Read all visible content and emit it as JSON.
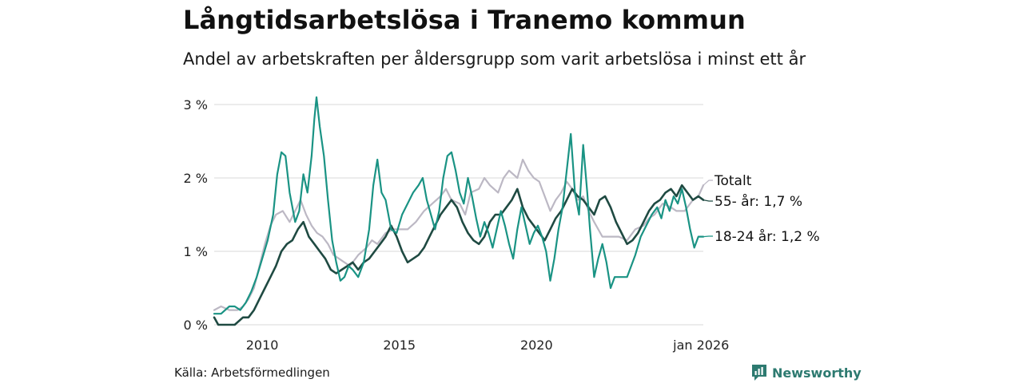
{
  "title": "Långtidsarbetslösa i Tranemo kommun",
  "subtitle": "Andel av arbetskraften per åldersgrupp som varit arbetslösa i minst ett år",
  "source": "Källa: Arbetsförmedlingen",
  "brand": "Newsworthy",
  "colors": {
    "totalt": "#bcb8c4",
    "age55": "#1f4a42",
    "age1824": "#1a9384",
    "grid": "#e0e0e0",
    "brand": "#2d7a70"
  },
  "chart_data": {
    "type": "line",
    "title": "Långtidsarbetslösa i Tranemo kommun",
    "xlabel": "",
    "ylabel": "",
    "ylim": [
      0,
      3
    ],
    "xlim": [
      2008.25,
      2026.08
    ],
    "yticks": [
      {
        "value": 0,
        "label": "0 %"
      },
      {
        "value": 1,
        "label": "1 %"
      },
      {
        "value": 2,
        "label": "2 %"
      },
      {
        "value": 3,
        "label": "3 %"
      }
    ],
    "xticks": [
      {
        "value": 2010,
        "label": "2010"
      },
      {
        "value": 2015,
        "label": "2015"
      },
      {
        "value": 2020,
        "label": "2020"
      },
      {
        "value": 2026.0,
        "label": "jan 2026"
      }
    ],
    "series": [
      {
        "name": "Totalt",
        "key": "totalt",
        "end_label": "Totalt",
        "width": 2.2,
        "points": [
          [
            2008.25,
            0.2
          ],
          [
            2008.5,
            0.25
          ],
          [
            2008.8,
            0.2
          ],
          [
            2009.1,
            0.2
          ],
          [
            2009.3,
            0.25
          ],
          [
            2009.5,
            0.35
          ],
          [
            2009.7,
            0.5
          ],
          [
            2009.9,
            0.8
          ],
          [
            2010.1,
            1.1
          ],
          [
            2010.3,
            1.35
          ],
          [
            2010.5,
            1.5
          ],
          [
            2010.75,
            1.55
          ],
          [
            2011.0,
            1.4
          ],
          [
            2011.2,
            1.55
          ],
          [
            2011.4,
            1.7
          ],
          [
            2011.6,
            1.5
          ],
          [
            2011.8,
            1.35
          ],
          [
            2012.0,
            1.25
          ],
          [
            2012.2,
            1.2
          ],
          [
            2012.4,
            1.1
          ],
          [
            2012.6,
            0.95
          ],
          [
            2012.8,
            0.9
          ],
          [
            2013.0,
            0.85
          ],
          [
            2013.2,
            0.8
          ],
          [
            2013.5,
            0.95
          ],
          [
            2013.8,
            1.05
          ],
          [
            2014.0,
            1.15
          ],
          [
            2014.2,
            1.1
          ],
          [
            2014.5,
            1.25
          ],
          [
            2014.8,
            1.3
          ],
          [
            2015.0,
            1.3
          ],
          [
            2015.3,
            1.3
          ],
          [
            2015.6,
            1.4
          ],
          [
            2015.9,
            1.55
          ],
          [
            2016.2,
            1.65
          ],
          [
            2016.5,
            1.75
          ],
          [
            2016.7,
            1.85
          ],
          [
            2016.9,
            1.7
          ],
          [
            2017.2,
            1.65
          ],
          [
            2017.4,
            1.5
          ],
          [
            2017.6,
            1.8
          ],
          [
            2017.9,
            1.85
          ],
          [
            2018.1,
            2.0
          ],
          [
            2018.3,
            1.9
          ],
          [
            2018.6,
            1.8
          ],
          [
            2018.8,
            2.0
          ],
          [
            2019.0,
            2.1
          ],
          [
            2019.3,
            2.0
          ],
          [
            2019.5,
            2.25
          ],
          [
            2019.7,
            2.1
          ],
          [
            2019.9,
            2.0
          ],
          [
            2020.1,
            1.95
          ],
          [
            2020.3,
            1.75
          ],
          [
            2020.5,
            1.55
          ],
          [
            2020.7,
            1.7
          ],
          [
            2020.9,
            1.8
          ],
          [
            2021.1,
            1.95
          ],
          [
            2021.3,
            1.85
          ],
          [
            2021.5,
            1.7
          ],
          [
            2021.7,
            1.75
          ],
          [
            2021.9,
            1.55
          ],
          [
            2022.1,
            1.4
          ],
          [
            2022.4,
            1.2
          ],
          [
            2022.7,
            1.2
          ],
          [
            2023.0,
            1.2
          ],
          [
            2023.3,
            1.15
          ],
          [
            2023.6,
            1.3
          ],
          [
            2023.9,
            1.35
          ],
          [
            2024.1,
            1.45
          ],
          [
            2024.3,
            1.5
          ],
          [
            2024.6,
            1.65
          ],
          [
            2024.9,
            1.6
          ],
          [
            2025.1,
            1.55
          ],
          [
            2025.4,
            1.55
          ],
          [
            2025.7,
            1.7
          ],
          [
            2025.9,
            1.75
          ],
          [
            2026.08,
            1.9
          ]
        ]
      },
      {
        "name": "55- år",
        "key": "age55",
        "end_label": "55- år: 1,7 %",
        "width": 2.6,
        "points": [
          [
            2008.25,
            0.1
          ],
          [
            2008.4,
            0.0
          ],
          [
            2008.7,
            0.0
          ],
          [
            2009.0,
            0.0
          ],
          [
            2009.3,
            0.1
          ],
          [
            2009.5,
            0.1
          ],
          [
            2009.7,
            0.2
          ],
          [
            2009.9,
            0.35
          ],
          [
            2010.1,
            0.5
          ],
          [
            2010.3,
            0.65
          ],
          [
            2010.5,
            0.8
          ],
          [
            2010.7,
            1.0
          ],
          [
            2010.9,
            1.1
          ],
          [
            2011.1,
            1.15
          ],
          [
            2011.3,
            1.3
          ],
          [
            2011.5,
            1.4
          ],
          [
            2011.7,
            1.2
          ],
          [
            2011.9,
            1.1
          ],
          [
            2012.1,
            1.0
          ],
          [
            2012.3,
            0.9
          ],
          [
            2012.5,
            0.75
          ],
          [
            2012.7,
            0.7
          ],
          [
            2012.9,
            0.75
          ],
          [
            2013.1,
            0.8
          ],
          [
            2013.3,
            0.85
          ],
          [
            2013.5,
            0.75
          ],
          [
            2013.7,
            0.85
          ],
          [
            2013.9,
            0.9
          ],
          [
            2014.1,
            1.0
          ],
          [
            2014.3,
            1.1
          ],
          [
            2014.5,
            1.2
          ],
          [
            2014.7,
            1.35
          ],
          [
            2014.9,
            1.2
          ],
          [
            2015.1,
            1.0
          ],
          [
            2015.3,
            0.85
          ],
          [
            2015.5,
            0.9
          ],
          [
            2015.7,
            0.95
          ],
          [
            2015.9,
            1.05
          ],
          [
            2016.1,
            1.2
          ],
          [
            2016.3,
            1.35
          ],
          [
            2016.5,
            1.5
          ],
          [
            2016.7,
            1.6
          ],
          [
            2016.9,
            1.7
          ],
          [
            2017.1,
            1.6
          ],
          [
            2017.3,
            1.4
          ],
          [
            2017.5,
            1.25
          ],
          [
            2017.7,
            1.15
          ],
          [
            2017.9,
            1.1
          ],
          [
            2018.1,
            1.2
          ],
          [
            2018.3,
            1.4
          ],
          [
            2018.5,
            1.5
          ],
          [
            2018.7,
            1.5
          ],
          [
            2018.9,
            1.6
          ],
          [
            2019.1,
            1.7
          ],
          [
            2019.3,
            1.85
          ],
          [
            2019.5,
            1.6
          ],
          [
            2019.7,
            1.45
          ],
          [
            2019.9,
            1.35
          ],
          [
            2020.1,
            1.25
          ],
          [
            2020.3,
            1.15
          ],
          [
            2020.5,
            1.3
          ],
          [
            2020.7,
            1.45
          ],
          [
            2020.9,
            1.55
          ],
          [
            2021.1,
            1.7
          ],
          [
            2021.3,
            1.85
          ],
          [
            2021.5,
            1.75
          ],
          [
            2021.7,
            1.7
          ],
          [
            2021.9,
            1.6
          ],
          [
            2022.1,
            1.5
          ],
          [
            2022.3,
            1.7
          ],
          [
            2022.5,
            1.75
          ],
          [
            2022.7,
            1.6
          ],
          [
            2022.9,
            1.4
          ],
          [
            2023.1,
            1.25
          ],
          [
            2023.3,
            1.1
          ],
          [
            2023.5,
            1.15
          ],
          [
            2023.7,
            1.25
          ],
          [
            2023.9,
            1.4
          ],
          [
            2024.1,
            1.55
          ],
          [
            2024.3,
            1.65
          ],
          [
            2024.5,
            1.7
          ],
          [
            2024.7,
            1.8
          ],
          [
            2024.9,
            1.85
          ],
          [
            2025.1,
            1.75
          ],
          [
            2025.3,
            1.9
          ],
          [
            2025.5,
            1.8
          ],
          [
            2025.7,
            1.7
          ],
          [
            2025.9,
            1.75
          ],
          [
            2026.08,
            1.7
          ]
        ]
      },
      {
        "name": "18-24 år",
        "key": "age1824",
        "end_label": "18-24 år: 1,2 %",
        "width": 2.2,
        "points": [
          [
            2008.25,
            0.15
          ],
          [
            2008.5,
            0.15
          ],
          [
            2008.8,
            0.25
          ],
          [
            2009.0,
            0.25
          ],
          [
            2009.2,
            0.2
          ],
          [
            2009.4,
            0.3
          ],
          [
            2009.6,
            0.45
          ],
          [
            2009.8,
            0.65
          ],
          [
            2010.0,
            0.9
          ],
          [
            2010.2,
            1.15
          ],
          [
            2010.4,
            1.5
          ],
          [
            2010.55,
            2.05
          ],
          [
            2010.7,
            2.35
          ],
          [
            2010.85,
            2.3
          ],
          [
            2011.0,
            1.8
          ],
          [
            2011.2,
            1.4
          ],
          [
            2011.35,
            1.55
          ],
          [
            2011.5,
            2.05
          ],
          [
            2011.65,
            1.8
          ],
          [
            2011.8,
            2.3
          ],
          [
            2011.9,
            2.8
          ],
          [
            2011.98,
            3.1
          ],
          [
            2012.1,
            2.7
          ],
          [
            2012.25,
            2.3
          ],
          [
            2012.4,
            1.7
          ],
          [
            2012.55,
            1.15
          ],
          [
            2012.7,
            0.85
          ],
          [
            2012.85,
            0.6
          ],
          [
            2013.0,
            0.65
          ],
          [
            2013.15,
            0.8
          ],
          [
            2013.3,
            0.75
          ],
          [
            2013.5,
            0.65
          ],
          [
            2013.7,
            0.85
          ],
          [
            2013.9,
            1.3
          ],
          [
            2014.05,
            1.9
          ],
          [
            2014.2,
            2.25
          ],
          [
            2014.35,
            1.8
          ],
          [
            2014.5,
            1.7
          ],
          [
            2014.7,
            1.3
          ],
          [
            2014.9,
            1.25
          ],
          [
            2015.1,
            1.5
          ],
          [
            2015.3,
            1.65
          ],
          [
            2015.5,
            1.8
          ],
          [
            2015.7,
            1.9
          ],
          [
            2015.85,
            2.0
          ],
          [
            2016.0,
            1.7
          ],
          [
            2016.15,
            1.5
          ],
          [
            2016.3,
            1.3
          ],
          [
            2016.45,
            1.55
          ],
          [
            2016.6,
            2.0
          ],
          [
            2016.75,
            2.3
          ],
          [
            2016.9,
            2.35
          ],
          [
            2017.05,
            2.1
          ],
          [
            2017.2,
            1.8
          ],
          [
            2017.35,
            1.65
          ],
          [
            2017.5,
            2.0
          ],
          [
            2017.65,
            1.75
          ],
          [
            2017.8,
            1.45
          ],
          [
            2017.95,
            1.2
          ],
          [
            2018.1,
            1.4
          ],
          [
            2018.25,
            1.25
          ],
          [
            2018.4,
            1.05
          ],
          [
            2018.55,
            1.3
          ],
          [
            2018.7,
            1.55
          ],
          [
            2018.85,
            1.35
          ],
          [
            2019.0,
            1.1
          ],
          [
            2019.15,
            0.9
          ],
          [
            2019.3,
            1.3
          ],
          [
            2019.45,
            1.6
          ],
          [
            2019.6,
            1.35
          ],
          [
            2019.75,
            1.1
          ],
          [
            2019.9,
            1.25
          ],
          [
            2020.05,
            1.35
          ],
          [
            2020.2,
            1.2
          ],
          [
            2020.35,
            1.0
          ],
          [
            2020.5,
            0.6
          ],
          [
            2020.65,
            0.9
          ],
          [
            2020.8,
            1.3
          ],
          [
            2020.95,
            1.6
          ],
          [
            2021.1,
            2.1
          ],
          [
            2021.25,
            2.6
          ],
          [
            2021.4,
            1.8
          ],
          [
            2021.55,
            1.5
          ],
          [
            2021.7,
            2.45
          ],
          [
            2021.85,
            1.8
          ],
          [
            2021.95,
            1.3
          ],
          [
            2022.1,
            0.65
          ],
          [
            2022.25,
            0.9
          ],
          [
            2022.4,
            1.1
          ],
          [
            2022.55,
            0.85
          ],
          [
            2022.7,
            0.5
          ],
          [
            2022.85,
            0.65
          ],
          [
            2023.0,
            0.65
          ],
          [
            2023.3,
            0.65
          ],
          [
            2023.6,
            0.95
          ],
          [
            2023.8,
            1.2
          ],
          [
            2024.0,
            1.35
          ],
          [
            2024.2,
            1.5
          ],
          [
            2024.4,
            1.6
          ],
          [
            2024.55,
            1.45
          ],
          [
            2024.7,
            1.7
          ],
          [
            2024.85,
            1.55
          ],
          [
            2025.0,
            1.75
          ],
          [
            2025.15,
            1.65
          ],
          [
            2025.3,
            1.85
          ],
          [
            2025.45,
            1.6
          ],
          [
            2025.6,
            1.3
          ],
          [
            2025.75,
            1.05
          ],
          [
            2025.9,
            1.2
          ],
          [
            2026.08,
            1.2
          ]
        ]
      }
    ]
  }
}
